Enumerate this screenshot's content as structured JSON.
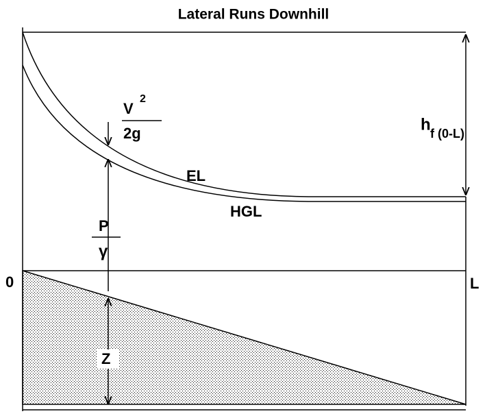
{
  "title": "Lateral Runs Downhill",
  "labels": {
    "hf": "h",
    "hf_sub": "f (0-L)",
    "v": "V",
    "v_exp": "2",
    "two_g": "2g",
    "el": "EL",
    "hgl": "HGL",
    "p": "P",
    "gamma": "γ",
    "origin": "0",
    "end": "L",
    "z": "Z"
  }
}
